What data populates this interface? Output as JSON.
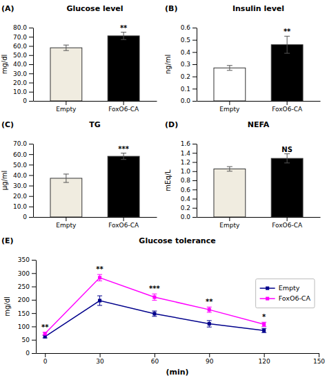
{
  "chart_data": [
    {
      "type": "bar",
      "title": "Glucose level",
      "ylabel": "mg/dl",
      "label": "(A)",
      "categories": [
        "Empty",
        "FoxO6-CA"
      ],
      "values": [
        58.0,
        71.0
      ],
      "errors": [
        3.0,
        4.0
      ],
      "colors": [
        "#f0ece0",
        "#000000"
      ],
      "ylim": [
        0,
        80
      ],
      "yticks": [
        0,
        {
          "value": 10,
          "label": "10.0"
        },
        {
          "value": 20,
          "label": "20.0"
        },
        {
          "value": 30,
          "label": "30.0"
        },
        {
          "value": 40,
          "label": "40.0"
        },
        {
          "value": 50,
          "label": "50.0"
        },
        {
          "value": 60,
          "label": "60.0"
        },
        {
          "value": 70,
          "label": "70.0"
        },
        {
          "value": 80,
          "label": "80.0"
        }
      ],
      "annotations": [
        {
          "text": "**",
          "x": "FoxO6-CA"
        }
      ]
    },
    {
      "type": "bar",
      "title": "Insulin level",
      "ylabel": "ng/ml",
      "label": "(B)",
      "categories": [
        "Empty",
        "FoxO6-CA"
      ],
      "values": [
        0.27,
        0.46
      ],
      "errors": [
        0.02,
        0.07
      ],
      "colors": [
        "#ffffff",
        "#000000"
      ],
      "ylim": [
        0,
        0.6
      ],
      "yticks": [
        {
          "value": 0,
          "label": "0.0"
        },
        0.1,
        0.2,
        0.3,
        0.4,
        0.5,
        0.6
      ],
      "annotations": [
        {
          "text": "**",
          "x": "FoxO6-CA"
        }
      ]
    },
    {
      "type": "bar",
      "title": "TG",
      "ylabel": "μg/ml",
      "label": "(C)",
      "categories": [
        "Empty",
        "FoxO6-CA"
      ],
      "values": [
        37.0,
        58.0
      ],
      "errors": [
        4.0,
        3.0
      ],
      "colors": [
        "#f0ece0",
        "#000000"
      ],
      "ylim": [
        0,
        70
      ],
      "yticks": [
        0,
        {
          "value": 10,
          "label": "10.0"
        },
        {
          "value": 20,
          "label": "20.0"
        },
        {
          "value": 30,
          "label": "30.0"
        },
        {
          "value": 40,
          "label": "40.0"
        },
        {
          "value": 50,
          "label": "50.0"
        },
        {
          "value": 60,
          "label": "60.0"
        },
        {
          "value": 70,
          "label": "70.0"
        }
      ],
      "annotations": [
        {
          "text": "***",
          "x": "FoxO6-CA"
        }
      ]
    },
    {
      "type": "bar",
      "title": "NEFA",
      "ylabel": "mEq/L",
      "label": "(D)",
      "categories": [
        "Empty",
        "FoxO6-CA"
      ],
      "values": [
        1.05,
        1.28
      ],
      "errors": [
        0.05,
        0.1
      ],
      "colors": [
        "#f0ece0",
        "#000000"
      ],
      "ylim": [
        0,
        1.6
      ],
      "yticks": [
        {
          "value": 0,
          "label": "0.0"
        },
        0.2,
        0.4,
        0.6,
        0.8,
        {
          "value": 1,
          "label": "1.0"
        },
        1.2,
        1.4,
        1.6
      ],
      "annotations": [
        {
          "text": "NS",
          "x": "FoxO6-CA"
        }
      ]
    },
    {
      "type": "line",
      "title": "Glucose tolerance",
      "xlabel": "(min)",
      "ylabel": "mg/dl",
      "label": "(E)",
      "x": [
        0,
        30,
        60,
        90,
        120
      ],
      "series": [
        {
          "name": "Empty",
          "color": "#00008B",
          "marker": "square",
          "values": [
            62,
            197,
            148,
            110,
            85
          ],
          "errors": [
            5,
            18,
            10,
            12,
            8
          ]
        },
        {
          "name": "FoxO6-CA",
          "color": "#FF00FF",
          "marker": "square",
          "values": [
            73,
            283,
            210,
            163,
            108
          ],
          "errors": [
            5,
            12,
            12,
            10,
            8
          ]
        }
      ],
      "xlim": [
        -5,
        150
      ],
      "xticks": [
        0,
        30,
        60,
        90,
        120,
        150
      ],
      "ylim": [
        0,
        350
      ],
      "yticks": [
        0,
        50,
        100,
        150,
        200,
        250,
        300,
        350
      ],
      "legend": "right",
      "annotations": [
        {
          "text": "**",
          "x": 0
        },
        {
          "text": "**",
          "x": 30
        },
        {
          "text": "***",
          "x": 60
        },
        {
          "text": "**",
          "x": 90
        },
        {
          "text": "*",
          "x": 120
        }
      ]
    }
  ]
}
